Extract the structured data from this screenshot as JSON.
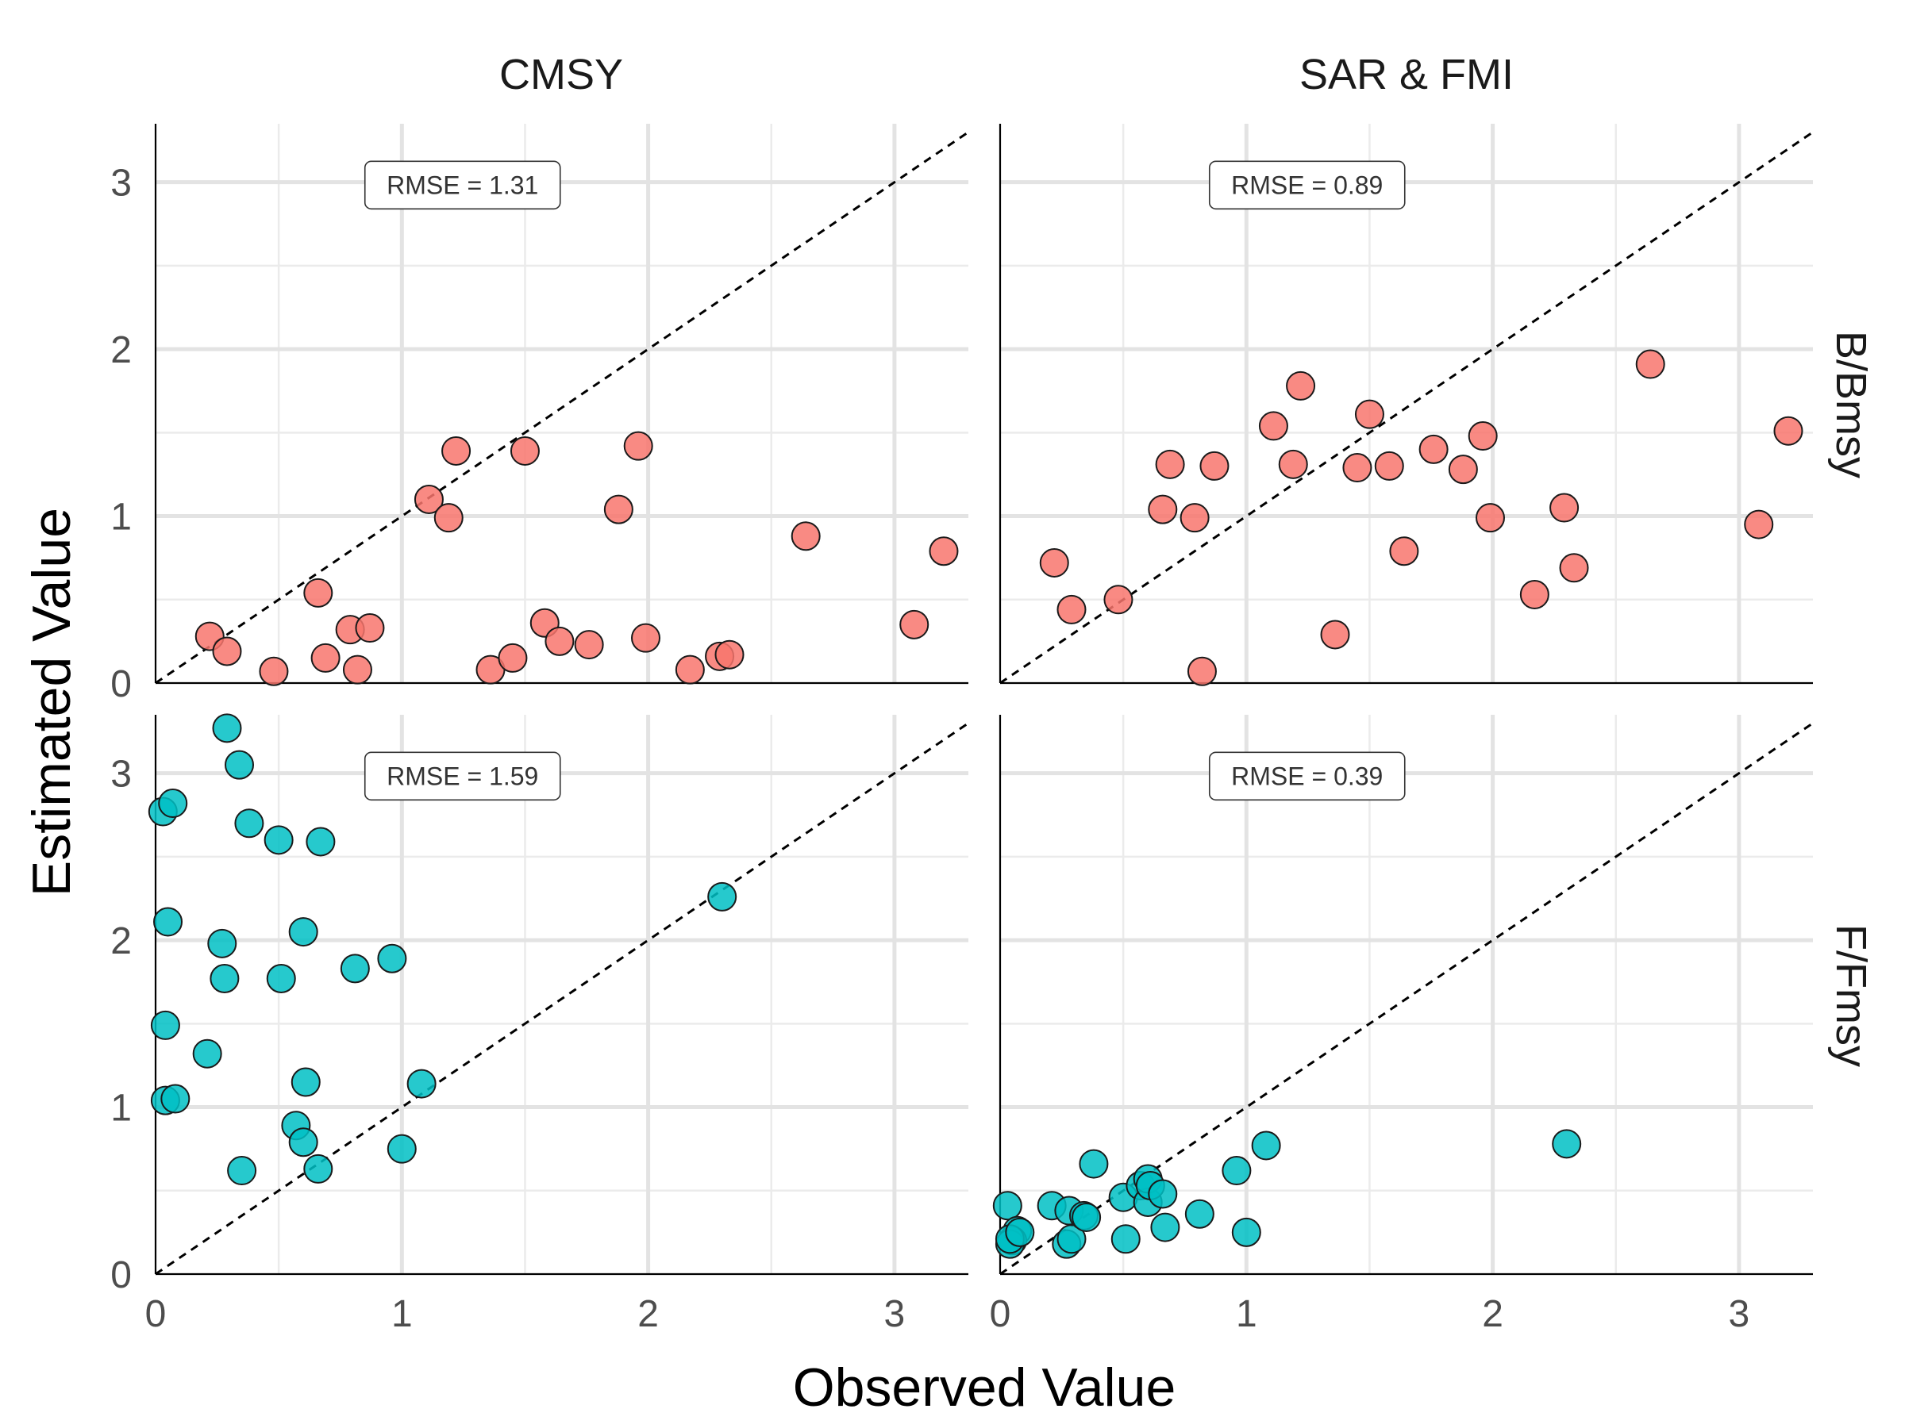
{
  "chart_data": {
    "type": "scatter",
    "xlabel": "Observed Value",
    "ylabel": "Estimated Value",
    "facet_columns": [
      "CMSY",
      "SAR & FMI"
    ],
    "facet_rows": [
      "B/Bmsy",
      "F/Fmsy"
    ],
    "xlim": [
      0,
      3.3
    ],
    "ylim": [
      0,
      3.35
    ],
    "x_ticks": [
      "0",
      "1",
      "2",
      "3"
    ],
    "y_ticks": [
      "0",
      "1",
      "2",
      "3"
    ],
    "grid": true,
    "reference_line": "y = x (dashed)",
    "colors": {
      "B/Bmsy": "#F8766D",
      "F/Fmsy": "#00BFC4"
    },
    "panels": [
      {
        "column": "CMSY",
        "row": "B/Bmsy",
        "rmse": "RMSE = 1.31",
        "points": [
          [
            0.22,
            0.28
          ],
          [
            0.29,
            0.19
          ],
          [
            0.48,
            0.07
          ],
          [
            0.66,
            0.54
          ],
          [
            0.69,
            0.15
          ],
          [
            0.79,
            0.32
          ],
          [
            0.82,
            0.08
          ],
          [
            0.87,
            0.33
          ],
          [
            1.11,
            1.1
          ],
          [
            1.19,
            0.99
          ],
          [
            1.22,
            1.39
          ],
          [
            1.36,
            0.08
          ],
          [
            1.45,
            0.15
          ],
          [
            1.5,
            1.39
          ],
          [
            1.58,
            0.36
          ],
          [
            1.64,
            0.25
          ],
          [
            1.76,
            0.23
          ],
          [
            1.88,
            1.04
          ],
          [
            1.96,
            1.42
          ],
          [
            1.99,
            0.27
          ],
          [
            2.17,
            0.08
          ],
          [
            2.29,
            0.16
          ],
          [
            2.33,
            0.17
          ],
          [
            2.64,
            0.88
          ],
          [
            3.08,
            0.35
          ],
          [
            3.2,
            0.79
          ]
        ]
      },
      {
        "column": "SAR & FMI",
        "row": "B/Bmsy",
        "rmse": "RMSE = 0.89",
        "points": [
          [
            0.22,
            0.72
          ],
          [
            0.29,
            0.44
          ],
          [
            0.48,
            0.5
          ],
          [
            0.66,
            1.04
          ],
          [
            0.69,
            1.31
          ],
          [
            0.79,
            0.99
          ],
          [
            0.82,
            0.07
          ],
          [
            0.87,
            1.3
          ],
          [
            1.11,
            1.54
          ],
          [
            1.19,
            1.31
          ],
          [
            1.22,
            1.78
          ],
          [
            1.36,
            0.29
          ],
          [
            1.45,
            1.29
          ],
          [
            1.5,
            1.61
          ],
          [
            1.58,
            1.3
          ],
          [
            1.64,
            0.79
          ],
          [
            1.76,
            1.4
          ],
          [
            1.88,
            1.28
          ],
          [
            1.96,
            1.48
          ],
          [
            1.99,
            0.99
          ],
          [
            2.17,
            0.53
          ],
          [
            2.29,
            1.05
          ],
          [
            2.33,
            0.69
          ],
          [
            2.64,
            1.91
          ],
          [
            3.08,
            0.95
          ],
          [
            3.2,
            1.51
          ]
        ]
      },
      {
        "column": "CMSY",
        "row": "F/Fmsy",
        "rmse": "RMSE = 1.59",
        "points": [
          [
            0.03,
            2.77
          ],
          [
            0.07,
            2.82
          ],
          [
            0.05,
            2.11
          ],
          [
            0.04,
            1.49
          ],
          [
            0.04,
            1.04
          ],
          [
            0.08,
            1.05
          ],
          [
            0.21,
            1.32
          ],
          [
            0.27,
            1.98
          ],
          [
            0.28,
            1.77
          ],
          [
            0.29,
            3.27
          ],
          [
            0.34,
            3.05
          ],
          [
            0.35,
            0.62
          ],
          [
            0.38,
            2.7
          ],
          [
            0.5,
            2.6
          ],
          [
            0.51,
            1.77
          ],
          [
            0.57,
            0.89
          ],
          [
            0.6,
            0.79
          ],
          [
            0.6,
            2.05
          ],
          [
            0.61,
            1.15
          ],
          [
            0.66,
            0.63
          ],
          [
            0.67,
            2.59
          ],
          [
            0.81,
            1.83
          ],
          [
            0.96,
            1.89
          ],
          [
            1.0,
            0.75
          ],
          [
            1.08,
            1.14
          ],
          [
            2.3,
            2.26
          ]
        ]
      },
      {
        "column": "SAR & FMI",
        "row": "F/Fmsy",
        "rmse": "RMSE = 0.39",
        "points": [
          [
            0.03,
            0.41
          ],
          [
            0.07,
            0.26
          ],
          [
            0.05,
            0.2
          ],
          [
            0.04,
            0.18
          ],
          [
            0.04,
            0.21
          ],
          [
            0.08,
            0.25
          ],
          [
            0.21,
            0.41
          ],
          [
            0.27,
            0.18
          ],
          [
            0.28,
            0.38
          ],
          [
            0.29,
            0.21
          ],
          [
            0.34,
            0.35
          ],
          [
            0.35,
            0.34
          ],
          [
            0.38,
            0.66
          ],
          [
            0.5,
            0.46
          ],
          [
            0.51,
            0.21
          ],
          [
            0.57,
            0.53
          ],
          [
            0.6,
            0.43
          ],
          [
            0.6,
            0.57
          ],
          [
            0.61,
            0.53
          ],
          [
            0.66,
            0.48
          ],
          [
            0.67,
            0.28
          ],
          [
            0.81,
            0.36
          ],
          [
            0.96,
            0.62
          ],
          [
            1.0,
            0.25
          ],
          [
            1.08,
            0.77
          ],
          [
            2.3,
            0.78
          ]
        ]
      }
    ]
  }
}
